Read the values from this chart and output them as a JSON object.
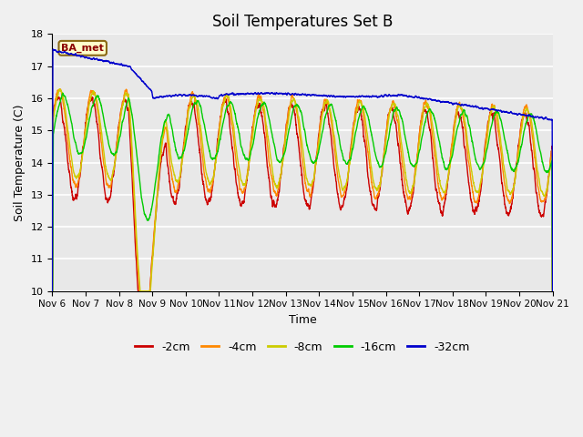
{
  "title": "Soil Temperatures Set B",
  "xlabel": "Time",
  "ylabel": "Soil Temperature (C)",
  "ylim": [
    10.0,
    18.0
  ],
  "yticks": [
    10.0,
    11.0,
    12.0,
    13.0,
    14.0,
    15.0,
    16.0,
    17.0,
    18.0
  ],
  "xtick_labels": [
    "Nov 6",
    "Nov 7",
    "Nov 8",
    "Nov 9",
    "Nov 10",
    "Nov 11",
    "Nov 12",
    "Nov 13",
    "Nov 14",
    "Nov 15",
    "Nov 16",
    "Nov 17",
    "Nov 18",
    "Nov 19",
    "Nov 20",
    "Nov 21"
  ],
  "n_points": 3600,
  "colors": {
    "-2cm": "#cc0000",
    "-4cm": "#ff8800",
    "-8cm": "#cccc00",
    "-16cm": "#00cc00",
    "-32cm": "#0000cc"
  },
  "legend_labels": [
    "-2cm",
    "-4cm",
    "-8cm",
    "-16cm",
    "-32cm"
  ],
  "ba_met_label": "BA_met",
  "fig_facecolor": "#f0f0f0",
  "plot_bg_color": "#e8e8e8",
  "grid_color": "#ffffff"
}
